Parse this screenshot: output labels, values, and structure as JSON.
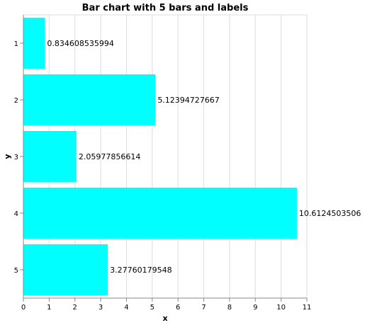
{
  "chart_data": {
    "type": "bar",
    "orientation": "horizontal",
    "title": "Bar chart with 5 bars and labels",
    "xlabel": "x",
    "ylabel": "y",
    "categories": [
      "1",
      "2",
      "3",
      "4",
      "5"
    ],
    "values": [
      0.834608535994,
      5.12394727667,
      2.05977856614,
      10.6124503506,
      3.27760179548
    ],
    "value_labels": [
      "0.834608535994",
      "5.12394727667",
      "2.05977856614",
      "10.6124503506",
      "3.27760179548"
    ],
    "xlim": [
      0,
      11
    ],
    "x_ticks": [
      "0",
      "1",
      "2",
      "3",
      "4",
      "5",
      "6",
      "7",
      "8",
      "9",
      "10",
      "11"
    ],
    "grid": true,
    "bar_color": "#00ffff"
  }
}
